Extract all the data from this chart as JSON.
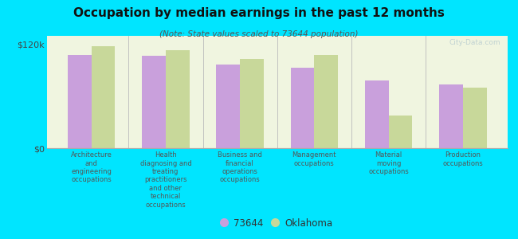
{
  "title": "Occupation by median earnings in the past 12 months",
  "subtitle": "(Note: State values scaled to 73644 population)",
  "categories": [
    "Architecture\nand\nengineering\noccupations",
    "Health\ndiagnosing and\ntreating\npractitioners\nand other\ntechnical\noccupations",
    "Business and\nfinancial\noperations\noccupations",
    "Management\noccupations",
    "Material\nmoving\noccupations",
    "Production\noccupations"
  ],
  "values_73644": [
    108000,
    107000,
    97000,
    93000,
    78000,
    74000
  ],
  "values_oklahoma": [
    118000,
    113000,
    103000,
    108000,
    38000,
    70000
  ],
  "bar_color_73644": "#c9a0dc",
  "bar_color_oklahoma": "#c8d89a",
  "background_color": "#00e5ff",
  "plot_bg_color": "#f0f5e0",
  "ymax": 130000,
  "ymin": 0,
  "legend_label_1": "73644",
  "legend_label_2": "Oklahoma",
  "watermark": "City-Data.com"
}
